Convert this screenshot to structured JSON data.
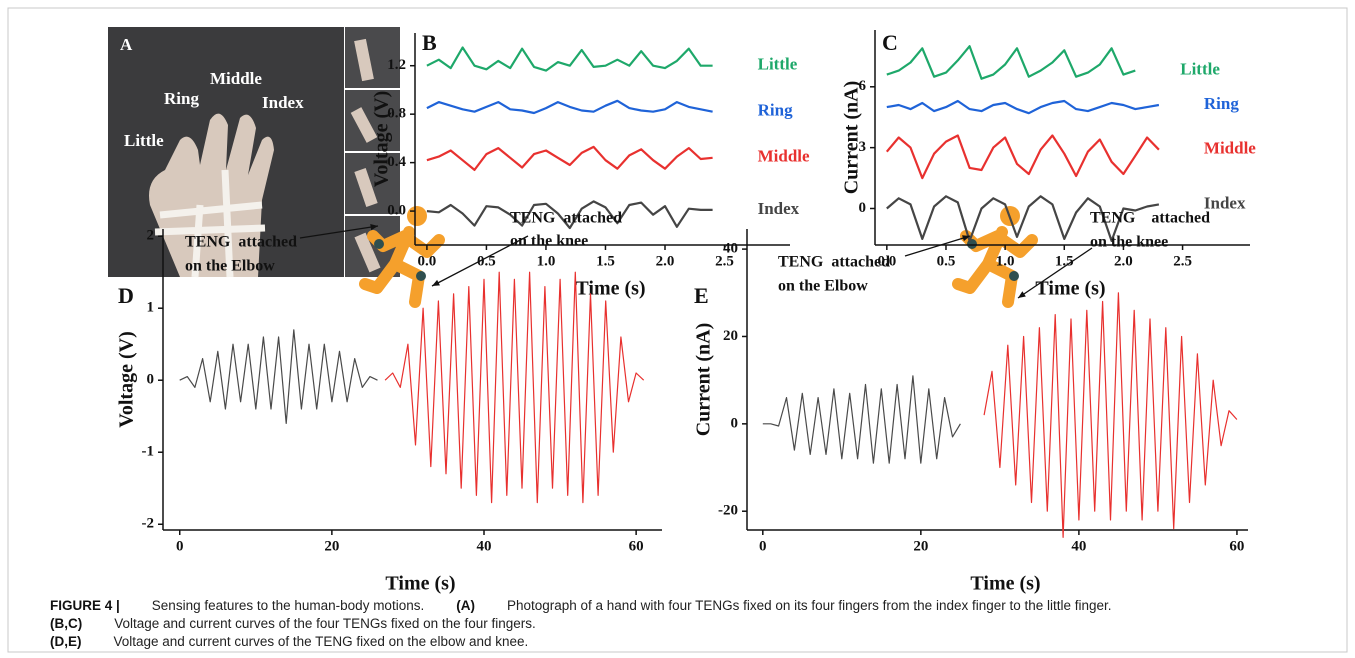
{
  "panel_a": {
    "panel_label": "A",
    "labels": [
      "Little",
      "Ring",
      "Middle",
      "Index"
    ]
  },
  "chart_data": [
    {
      "type": "line",
      "panel_label": "B",
      "x_label": "Time (s)",
      "y_label": "Voltage (V)",
      "xlim": [
        -0.1,
        3.05
      ],
      "xticks": [
        {
          "value": 0,
          "label": "0.0"
        },
        0.5,
        {
          "value": 1,
          "label": "1.0"
        },
        1.5,
        {
          "value": 2,
          "label": "2.0"
        },
        2.5
      ],
      "ylim": [
        -0.28,
        1.47
      ],
      "yticks": [
        {
          "value": 0,
          "label": "0.0"
        },
        0.4,
        0.8,
        1.2
      ],
      "x": [
        0,
        0.1,
        0.2,
        0.3,
        0.4,
        0.5,
        0.6,
        0.7,
        0.8,
        0.9,
        1.0,
        1.1,
        1.2,
        1.3,
        1.4,
        1.5,
        1.6,
        1.7,
        1.8,
        1.9,
        2.0,
        2.1,
        2.2,
        2.3,
        2.4
      ],
      "series": [
        {
          "name": "Little",
          "color": "#1ea86a",
          "values": [
            1.2,
            1.25,
            1.18,
            1.35,
            1.2,
            1.17,
            1.24,
            1.18,
            1.34,
            1.19,
            1.16,
            1.23,
            1.2,
            1.33,
            1.19,
            1.2,
            1.25,
            1.2,
            1.32,
            1.2,
            1.18,
            1.24,
            1.34,
            1.2,
            1.2
          ]
        },
        {
          "name": "Ring",
          "color": "#1f63d8",
          "values": [
            0.85,
            0.9,
            0.87,
            0.84,
            0.82,
            0.86,
            0.9,
            0.84,
            0.83,
            0.81,
            0.85,
            0.9,
            0.86,
            0.83,
            0.82,
            0.87,
            0.91,
            0.85,
            0.83,
            0.82,
            0.84,
            0.9,
            0.86,
            0.84,
            0.82
          ]
        },
        {
          "name": "Middle",
          "color": "#e8312f",
          "values": [
            0.42,
            0.45,
            0.5,
            0.42,
            0.34,
            0.47,
            0.52,
            0.44,
            0.36,
            0.47,
            0.5,
            0.44,
            0.38,
            0.48,
            0.53,
            0.42,
            0.35,
            0.46,
            0.51,
            0.42,
            0.35,
            0.45,
            0.52,
            0.43,
            0.44
          ]
        },
        {
          "name": "Index",
          "color": "#454545",
          "values": [
            0,
            -0.01,
            0.05,
            -0.02,
            -0.12,
            0.04,
            0.03,
            -0.03,
            -0.12,
            0.05,
            0.06,
            -0.02,
            -0.14,
            0.02,
            0.08,
            0.03,
            -0.1,
            0.05,
            0.07,
            -0.03,
            0.04,
            -0.13,
            0.02,
            0.01,
            0.01
          ]
        }
      ]
    },
    {
      "type": "line",
      "panel_label": "C",
      "x_label": "Time (s)",
      "y_label": "Current (nA)",
      "xlim": [
        -0.1,
        3.07
      ],
      "xticks": [
        {
          "value": 0,
          "label": "0.0"
        },
        0.5,
        {
          "value": 1,
          "label": "1.0"
        },
        1.5,
        {
          "value": 2,
          "label": "2.0"
        },
        2.5
      ],
      "ylim": [
        -1.8,
        8.8
      ],
      "yticks": [
        0,
        3,
        6
      ],
      "x": [
        0,
        0.1,
        0.2,
        0.3,
        0.4,
        0.5,
        0.6,
        0.7,
        0.8,
        0.9,
        1.0,
        1.1,
        1.2,
        1.3,
        1.4,
        1.5,
        1.6,
        1.7,
        1.8,
        1.9,
        2.0,
        2.1,
        2.2,
        2.3
      ],
      "series": [
        {
          "name": "Little",
          "color": "#1ea86a",
          "values": [
            6.6,
            6.8,
            7.2,
            7.9,
            6.5,
            6.7,
            7.3,
            8.0,
            6.4,
            6.6,
            7.1,
            7.9,
            6.5,
            6.8,
            7.2,
            7.8,
            6.5,
            6.7,
            7.1,
            7.9,
            6.6,
            6.8,
            null,
            null
          ]
        },
        {
          "name": "Ring",
          "color": "#1f63d8",
          "values": [
            5.0,
            5.1,
            4.9,
            5.2,
            4.8,
            5.0,
            5.3,
            4.9,
            4.8,
            5.1,
            5.2,
            4.9,
            4.7,
            5.0,
            5.2,
            5.3,
            4.9,
            4.8,
            5.0,
            5.2,
            5.1,
            4.9,
            5.0,
            5.1
          ]
        },
        {
          "name": "Middle",
          "color": "#e8312f",
          "values": [
            2.8,
            3.5,
            3.0,
            1.5,
            2.7,
            3.3,
            3.6,
            2.0,
            1.9,
            3.0,
            3.5,
            2.2,
            1.7,
            2.9,
            3.6,
            2.7,
            1.6,
            2.8,
            3.4,
            2.3,
            1.7,
            2.6,
            3.5,
            2.9
          ]
        },
        {
          "name": "Index",
          "color": "#454545",
          "values": [
            0,
            0.5,
            0.2,
            -1.5,
            0.1,
            0.6,
            0.3,
            -1.6,
            0,
            0.5,
            0.2,
            -1.4,
            0.1,
            0.6,
            0.2,
            -1.5,
            -0.2,
            0.5,
            0.1,
            -1.6,
            0,
            -0.1,
            0.1,
            0.2
          ]
        }
      ]
    },
    {
      "type": "line",
      "panel_label": "D",
      "x_label": "Time (s)",
      "y_label": "Voltage (V)",
      "annotations": [
        "TENG  attached",
        "on the Elbow",
        "TENG  attached",
        "on the knee"
      ],
      "xlim": [
        -2.2,
        63.4
      ],
      "xticks": [
        0,
        20,
        40,
        60
      ],
      "ylim": [
        -2.08,
        2.1
      ],
      "yticks": [
        -2,
        -1,
        0,
        1,
        2
      ],
      "series": [
        {
          "color": "#4a4a4a",
          "x": [
            0,
            1,
            2,
            3,
            4,
            5,
            6,
            7,
            8,
            9,
            10,
            11,
            12,
            13,
            14,
            15,
            16,
            17,
            18,
            19,
            20,
            21,
            22,
            23,
            24,
            25,
            26
          ],
          "values": [
            0,
            0.05,
            -0.1,
            0.3,
            -0.3,
            0.4,
            -0.4,
            0.5,
            -0.3,
            0.5,
            -0.4,
            0.6,
            -0.4,
            0.6,
            -0.6,
            0.7,
            -0.4,
            0.5,
            -0.4,
            0.5,
            -0.3,
            0.4,
            -0.3,
            0.3,
            -0.1,
            0.05,
            0
          ]
        },
        {
          "color": "#e8302e",
          "x": [
            27,
            28,
            29,
            30,
            31,
            32,
            33,
            34,
            35,
            36,
            37,
            38,
            39,
            40,
            41,
            42,
            43,
            44,
            45,
            46,
            47,
            48,
            49,
            50,
            51,
            52,
            53,
            54,
            55,
            56,
            57,
            58,
            59,
            60,
            61
          ],
          "values": [
            0,
            0.1,
            -0.1,
            0.5,
            -0.9,
            1.0,
            -1.2,
            1.1,
            -1.3,
            1.2,
            -1.5,
            1.3,
            -1.6,
            1.4,
            -1.7,
            1.5,
            -1.6,
            1.4,
            -1.5,
            1.5,
            -1.7,
            1.3,
            -1.5,
            1.4,
            -1.6,
            1.5,
            -1.7,
            1.2,
            -1.6,
            1.1,
            -1.0,
            0.6,
            -0.3,
            0.1,
            0
          ]
        }
      ]
    },
    {
      "type": "line",
      "panel_label": "E",
      "x_label": "Time (s)",
      "y_label": "Current (nA)",
      "annotations": [
        "TENG  attached",
        "on the Elbow",
        "TENG    attached",
        "on the knee"
      ],
      "xlim": [
        -2,
        61.4
      ],
      "xticks": [
        0,
        20,
        40,
        60
      ],
      "ylim": [
        -24.3,
        44.6
      ],
      "yticks": [
        -20,
        0,
        20,
        40
      ],
      "series": [
        {
          "color": "#4a4a4a",
          "x": [
            0,
            1,
            2,
            3,
            4,
            5,
            6,
            7,
            8,
            9,
            10,
            11,
            12,
            13,
            14,
            15,
            16,
            17,
            18,
            19,
            20,
            21,
            22,
            23,
            24,
            25
          ],
          "values": [
            0,
            0,
            -0.5,
            6,
            -6,
            7,
            -7,
            6,
            -7,
            8,
            -8,
            7,
            -8,
            9,
            -9,
            8,
            -9,
            9,
            -8,
            11,
            -9,
            8,
            -8,
            6,
            -3,
            0
          ]
        },
        {
          "color": "#e8302e",
          "x": [
            28,
            29,
            30,
            31,
            32,
            33,
            34,
            35,
            36,
            37,
            38,
            39,
            40,
            41,
            42,
            43,
            44,
            45,
            46,
            47,
            48,
            49,
            50,
            51,
            52,
            53,
            54,
            55,
            56,
            57,
            58,
            59,
            60
          ],
          "values": [
            2,
            12,
            -10,
            18,
            -14,
            20,
            -18,
            22,
            -20,
            25,
            -26,
            24,
            -22,
            26,
            -20,
            28,
            -22,
            30,
            -20,
            26,
            -22,
            24,
            -20,
            22,
            -24,
            20,
            -18,
            16,
            -14,
            10,
            -5,
            3,
            1
          ]
        }
      ]
    }
  ],
  "caption": {
    "figure_label": "FIGURE 4 |",
    "lines": [
      [
        "Sensing features to the human-body motions.",
        "(A)",
        "Photograph of a hand with four TENGs fixed on its four fingers from the index finger to the little finger."
      ],
      [
        "(B,C)",
        "Voltage and current curves of the four TENGs fixed on the four fingers."
      ],
      [
        "(D,E)",
        "Voltage and current curves of the TENG fixed on the elbow and knee."
      ]
    ]
  }
}
